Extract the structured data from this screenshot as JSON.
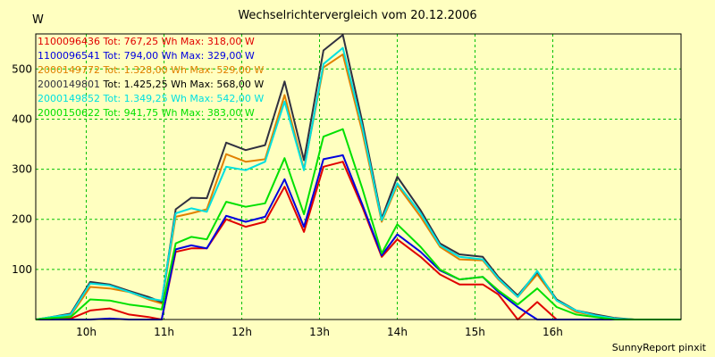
{
  "header": {
    "title": "Wechselrichtervergleich vom 20.12.2006",
    "y_unit": "W"
  },
  "footer": {
    "text": "SunnyReport pinxit"
  },
  "chart_data": {
    "type": "line",
    "title": "Wechselrichtervergleich vom 20.12.2006",
    "xlabel": "",
    "ylabel": "W",
    "xlim": [
      9.35,
      17.65
    ],
    "ylim": [
      0,
      570
    ],
    "grid": true,
    "legend_position": "top-left",
    "y_ticks": [
      100,
      200,
      300,
      400,
      500
    ],
    "x_tick_values": [
      10,
      11,
      12,
      13,
      14,
      15,
      16
    ],
    "x_tick_labels": [
      "10h",
      "11h",
      "12h",
      "13h",
      "14h",
      "15h",
      "16h"
    ],
    "x": [
      9.35,
      9.55,
      9.8,
      10.05,
      10.3,
      10.55,
      10.8,
      10.97,
      11.15,
      11.35,
      11.55,
      11.8,
      12.05,
      12.3,
      12.55,
      12.8,
      13.05,
      13.3,
      13.55,
      13.8,
      14.0,
      14.3,
      14.55,
      14.8,
      15.1,
      15.3,
      15.55,
      15.8,
      16.05,
      16.3,
      16.55,
      16.8,
      17.05,
      17.3,
      17.65
    ],
    "series": [
      {
        "name": "1100096436",
        "legend": "1100096436 Tot: 767,25 Wh Max: 318,00 W",
        "color": "#e00000",
        "values": [
          0,
          0,
          2,
          18,
          22,
          10,
          5,
          0,
          135,
          142,
          142,
          200,
          185,
          195,
          265,
          175,
          305,
          315,
          225,
          125,
          160,
          125,
          90,
          70,
          70,
          50,
          0,
          35,
          0,
          0,
          0,
          0,
          0,
          0,
          0
        ]
      },
      {
        "name": "1100096541",
        "legend": "1100096541 Tot: 794,00 Wh Max: 329,00 W",
        "color": "#0000e0",
        "values": [
          0,
          0,
          0,
          0,
          2,
          0,
          0,
          0,
          140,
          148,
          142,
          207,
          195,
          205,
          280,
          185,
          320,
          328,
          230,
          128,
          170,
          135,
          98,
          80,
          85,
          55,
          25,
          0,
          0,
          0,
          0,
          0,
          0,
          0,
          0
        ]
      },
      {
        "name": "2000149772",
        "legend": "2000149772 Tot: 1.328,00 Wh Max: 529,00 W",
        "color": "#e08000",
        "values": [
          0,
          3,
          8,
          65,
          62,
          55,
          40,
          32,
          205,
          212,
          220,
          330,
          315,
          320,
          448,
          300,
          503,
          529,
          375,
          195,
          268,
          205,
          145,
          120,
          118,
          80,
          45,
          90,
          38,
          15,
          8,
          2,
          0,
          0,
          0
        ]
      },
      {
        "name": "2000149801",
        "legend": "2000149801 Tot: 1.425,25 Wh Max: 568,00 W",
        "color": "#303040",
        "values": [
          0,
          5,
          12,
          75,
          70,
          57,
          45,
          35,
          220,
          243,
          242,
          353,
          338,
          348,
          475,
          318,
          537,
          568,
          395,
          202,
          285,
          218,
          152,
          130,
          125,
          85,
          48,
          95,
          40,
          18,
          10,
          3,
          0,
          0,
          0
        ]
      },
      {
        "name": "2000149852",
        "legend": "2000149852 Tot: 1.349,25 Wh Max: 542,00 W",
        "color": "#00e0e0",
        "values": [
          0,
          5,
          10,
          72,
          68,
          55,
          42,
          38,
          212,
          222,
          215,
          305,
          298,
          315,
          435,
          298,
          510,
          542,
          385,
          198,
          272,
          212,
          148,
          125,
          120,
          82,
          45,
          97,
          38,
          18,
          8,
          2,
          0,
          0,
          0
        ]
      },
      {
        "name": "2000150622",
        "legend": "2000150622 Tot: 941,75 Wh Max: 383,00 W",
        "color": "#00e000",
        "values": [
          0,
          3,
          5,
          40,
          38,
          30,
          25,
          20,
          152,
          165,
          160,
          235,
          225,
          232,
          322,
          210,
          365,
          380,
          262,
          132,
          190,
          145,
          100,
          80,
          85,
          58,
          30,
          62,
          25,
          10,
          5,
          0,
          0,
          0,
          0
        ]
      }
    ]
  }
}
